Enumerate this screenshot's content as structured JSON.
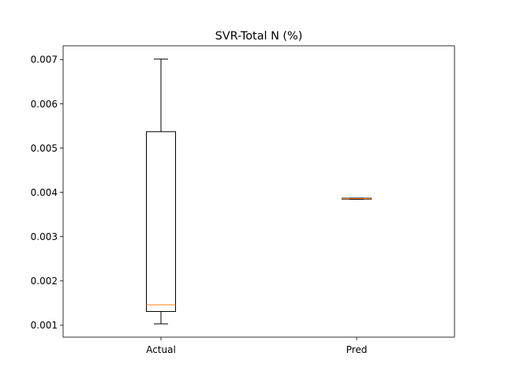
{
  "chart_data": {
    "type": "box",
    "title": "SVR-Total N (%)",
    "xlabel": "",
    "ylabel": "",
    "categories": [
      "Actual",
      "Pred"
    ],
    "boxes": [
      {
        "label": "Actual",
        "whisker_low": 0.00103,
        "q1": 0.00131,
        "median": 0.00146,
        "q3": 0.00537,
        "whisker_high": 0.00701
      },
      {
        "label": "Pred",
        "whisker_low": 0.003845,
        "q1": 0.003848,
        "median": 0.00386,
        "q3": 0.003868,
        "whisker_high": 0.00387
      }
    ],
    "ylim": [
      0.00073,
      0.00731
    ],
    "yticks": [
      "0.001",
      "0.002",
      "0.003",
      "0.004",
      "0.005",
      "0.006",
      "0.007"
    ],
    "grid": false,
    "colors": {
      "box": "#000000",
      "median": "#ff7f0e"
    }
  }
}
